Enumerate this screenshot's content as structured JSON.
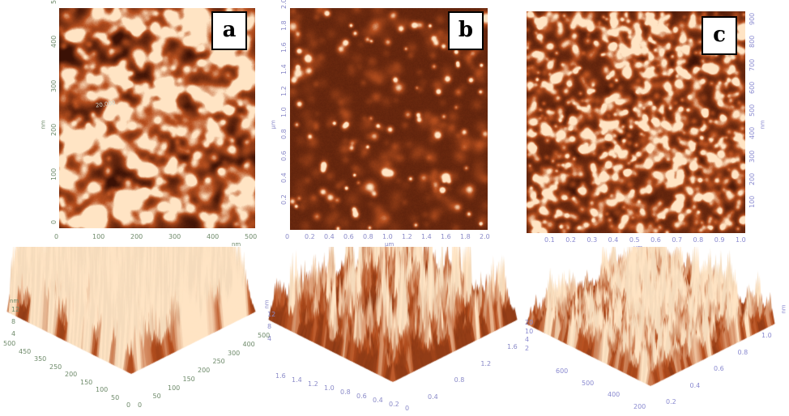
{
  "panels": [
    {
      "label": "a",
      "x_ticks": [
        "0",
        "100",
        "200",
        "300",
        "400",
        "500"
      ],
      "y_ticks": [
        "0",
        "100",
        "200",
        "300",
        "400",
        "500"
      ],
      "x_unit": "nm",
      "y_unit": "nm",
      "line_label": "20,000",
      "z_unit": "nm",
      "z_ticks": [
        "12",
        "8",
        "4"
      ],
      "axis3d_left": [
        "500",
        "450",
        "350",
        "250",
        "200",
        "150",
        "100",
        "50",
        "0"
      ],
      "axis3d_right": [
        "0",
        "50",
        "100",
        "150",
        "200",
        "250",
        "300",
        "400",
        "500"
      ]
    },
    {
      "label": "b",
      "x_ticks": [
        "0",
        "0.2",
        "0.4",
        "0.6",
        "0.8",
        "1.0",
        "1.2",
        "1.4",
        "1.6",
        "1.8",
        "2.0"
      ],
      "y_ticks": [
        "0.2",
        "0.4",
        "0.6",
        "0.8",
        "1.0",
        "1.2",
        "1.4",
        "1.6",
        "1.8",
        "2.0"
      ],
      "x_unit": "µm",
      "y_unit": "µm",
      "z_unit": "nm",
      "z_ticks": [
        "12",
        "8",
        "4"
      ],
      "axis3d_left": [
        "1.6",
        "1.4",
        "1.2",
        "1.0",
        "0.8",
        "0.6",
        "0.4",
        "0.2",
        "0"
      ],
      "axis3d_right": [
        "0.4",
        "0.8",
        "1.2",
        "1.6"
      ]
    },
    {
      "label": "c",
      "x_ticks": [
        "0.1",
        "0.2",
        "0.3",
        "0.4",
        "0.5",
        "0.6",
        "0.7",
        "0.8",
        "0.9",
        "1.0"
      ],
      "y_ticks": [
        "100",
        "200",
        "300",
        "400",
        "500",
        "600",
        "700",
        "800",
        "900"
      ],
      "x_unit": "µm",
      "y_unit": "nm",
      "z_unit": "nm",
      "z_ticks": [
        "20",
        "10",
        "4",
        "2"
      ],
      "axis3d_left": [
        "600",
        "500",
        "400",
        "200"
      ],
      "axis3d_right": [
        "0.2",
        "0.4",
        "0.6",
        "0.8",
        "1.0"
      ]
    }
  ],
  "colors": {
    "grain_dark": "#3b1105",
    "grain_mid": "#b8501f",
    "grain_light": "#ffe4c4",
    "background": "#ffffff"
  }
}
